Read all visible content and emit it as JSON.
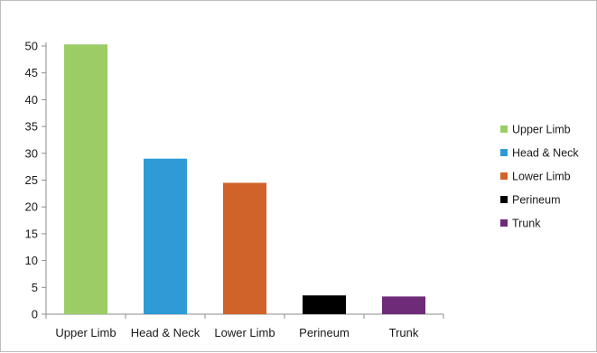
{
  "chart_data": {
    "type": "bar",
    "title": "",
    "xlabel": "",
    "ylabel": "",
    "categories": [
      "Upper Limb",
      "Head & Neck",
      "Lower Limb",
      "Perineum",
      "Trunk"
    ],
    "values": [
      50.3,
      29,
      24.5,
      3.5,
      3.3
    ],
    "colors": [
      "#9bcc66",
      "#2e9bd6",
      "#d0632a",
      "#000000",
      "#6e2b78"
    ],
    "ylim": [
      0,
      50
    ],
    "yticks": [
      0,
      5,
      10,
      15,
      20,
      25,
      30,
      35,
      40,
      45,
      50
    ],
    "grid": false,
    "legend": {
      "position": "right",
      "entries": [
        "Upper Limb",
        "Head & Neck",
        "Lower Limb",
        "Perineum",
        "Trunk"
      ]
    }
  }
}
